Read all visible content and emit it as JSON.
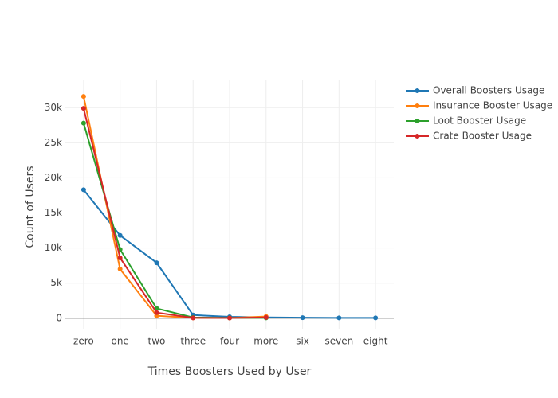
{
  "chart_data": {
    "type": "line",
    "x_label": "Times Boosters Used by User",
    "y_label": "Count of Users",
    "categories": [
      "zero",
      "one",
      "two",
      "three",
      "four",
      "more",
      "six",
      "seven",
      "eight"
    ],
    "series": [
      {
        "name": "Overall Boosters Usage",
        "color": "#1f77b4",
        "values": [
          18300,
          11800,
          7900,
          450,
          200,
          120,
          80,
          50,
          40
        ]
      },
      {
        "name": "Insurance Booster Usage",
        "color": "#ff7f0e",
        "values": [
          31600,
          7000,
          350,
          50,
          30,
          250,
          null,
          null,
          null
        ]
      },
      {
        "name": "Loot Booster Usage",
        "color": "#2ca02c",
        "values": [
          27800,
          9800,
          1400,
          100,
          50,
          50,
          null,
          null,
          null
        ]
      },
      {
        "name": "Crate Booster Usage",
        "color": "#d62728",
        "values": [
          29900,
          8600,
          800,
          50,
          30,
          100,
          null,
          null,
          null
        ]
      }
    ],
    "ylim": [
      -1500,
      34000
    ],
    "yticks": [
      0,
      {
        "value": 5000,
        "label": "5k"
      },
      {
        "value": 10000,
        "label": "10k"
      },
      {
        "value": 15000,
        "label": "15k"
      },
      {
        "value": 20000,
        "label": "20k"
      },
      {
        "value": 25000,
        "label": "25k"
      },
      {
        "value": 30000,
        "label": "30k"
      }
    ],
    "grid": true,
    "legend": "right"
  }
}
